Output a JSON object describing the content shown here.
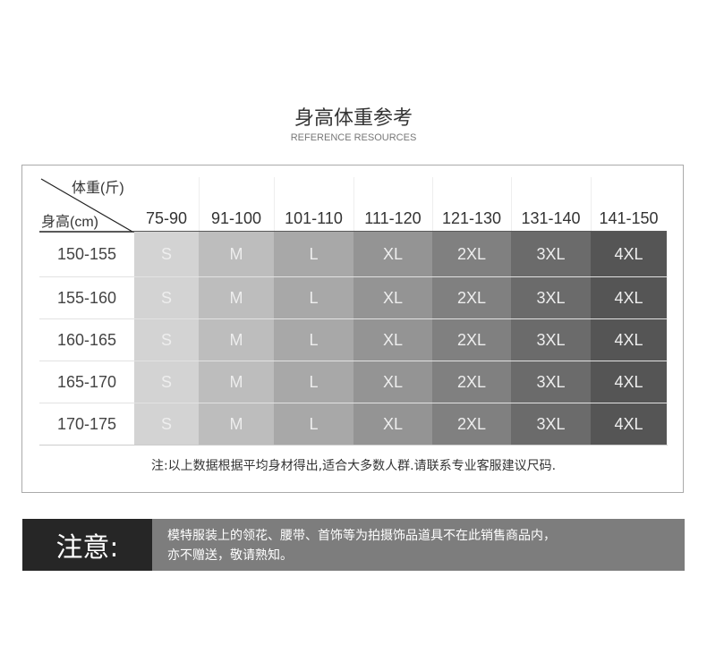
{
  "title": "身高体重参考",
  "subtitle": "REFERENCE RESOURCES",
  "table": {
    "corner_weight": "体重(斤)",
    "corner_height": "身高(cm)",
    "weight_ranges": [
      "75-90",
      "91-100",
      "101-110",
      "111-120",
      "121-130",
      "131-140",
      "141-150"
    ],
    "height_ranges": [
      "150-155",
      "155-160",
      "160-165",
      "165-170",
      "170-175"
    ],
    "sizes": [
      "S",
      "M",
      "L",
      "XL",
      "2XL",
      "3XL",
      "4XL"
    ],
    "size_colors": [
      "#d3d3d3",
      "#bdbdbd",
      "#a8a8a8",
      "#949494",
      "#808080",
      "#6b6b6b",
      "#555555"
    ]
  },
  "note": "注:以上数据根据平均身材得出,适合大多数人群.请联系专业客服建议尺码.",
  "notice": {
    "label": "注意:",
    "line1": "模特服装上的领花、腰带、首饰等为拍摄饰品道具不在此销售商品内，",
    "line2": "亦不赠送，敬请熟知。"
  }
}
